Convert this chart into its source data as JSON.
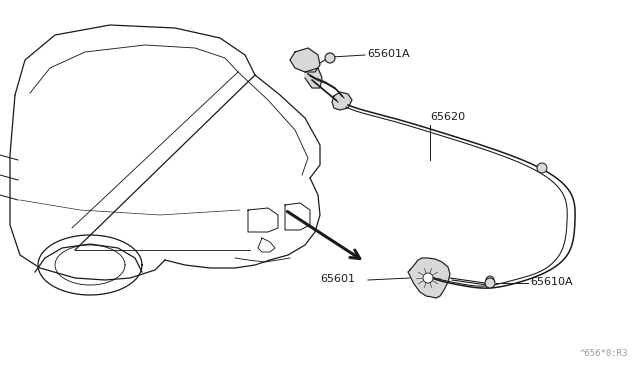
{
  "bg_color": "#ffffff",
  "line_color": "#1a1a1a",
  "label_color": "#1a1a1a",
  "fig_width": 6.4,
  "fig_height": 3.72,
  "dpi": 100,
  "watermark": "^656*0:R3",
  "car_color": "#1a1a1a",
  "cable_color": "#1a1a1a",
  "part_fill": "#d8d8d8"
}
